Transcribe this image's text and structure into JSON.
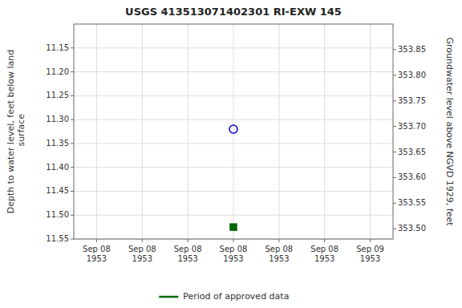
{
  "chart_data": {
    "type": "scatter",
    "title": "USGS 413513071402301 RI-EXW  145",
    "y_label": "Depth to water level, feet below land\n surface",
    "y2_label": "Groundwater level above NGVD 1929, feet",
    "categories": [
      "Sep 08\n1953",
      "Sep 08\n1953",
      "Sep 08\n1953",
      "Sep 08\n1953",
      "Sep 08\n1953",
      "Sep 08\n1953",
      "Sep 09\n1953"
    ],
    "ylim": [
      11.55,
      11.1
    ],
    "yticks": [
      11.15,
      {
        "value": 11.2,
        "label": "11.20"
      },
      11.25,
      {
        "value": 11.3,
        "label": "11.30"
      },
      11.35,
      {
        "value": 11.4,
        "label": "11.40"
      },
      11.45,
      {
        "value": 11.5,
        "label": "11.50"
      },
      11.55
    ],
    "y2lim": [
      353.48,
      353.9
    ],
    "y2ticks": [
      353.85,
      {
        "value": 353.8,
        "label": "353.80"
      },
      353.75,
      {
        "value": 353.7,
        "label": "353.70"
      },
      353.65,
      {
        "value": 353.6,
        "label": "353.60"
      },
      353.55,
      {
        "value": 353.5,
        "label": "353.50"
      }
    ],
    "series": [
      {
        "color": "#0000cc",
        "marker": "circle-open",
        "values": [
          null,
          null,
          null,
          11.32,
          null,
          null,
          null
        ]
      },
      {
        "name": "Period of approved data",
        "color": "#006600",
        "marker": "square",
        "values": [
          null,
          null,
          null,
          11.525,
          null,
          null,
          null
        ]
      }
    ],
    "grid": true,
    "legend": "bottom"
  }
}
